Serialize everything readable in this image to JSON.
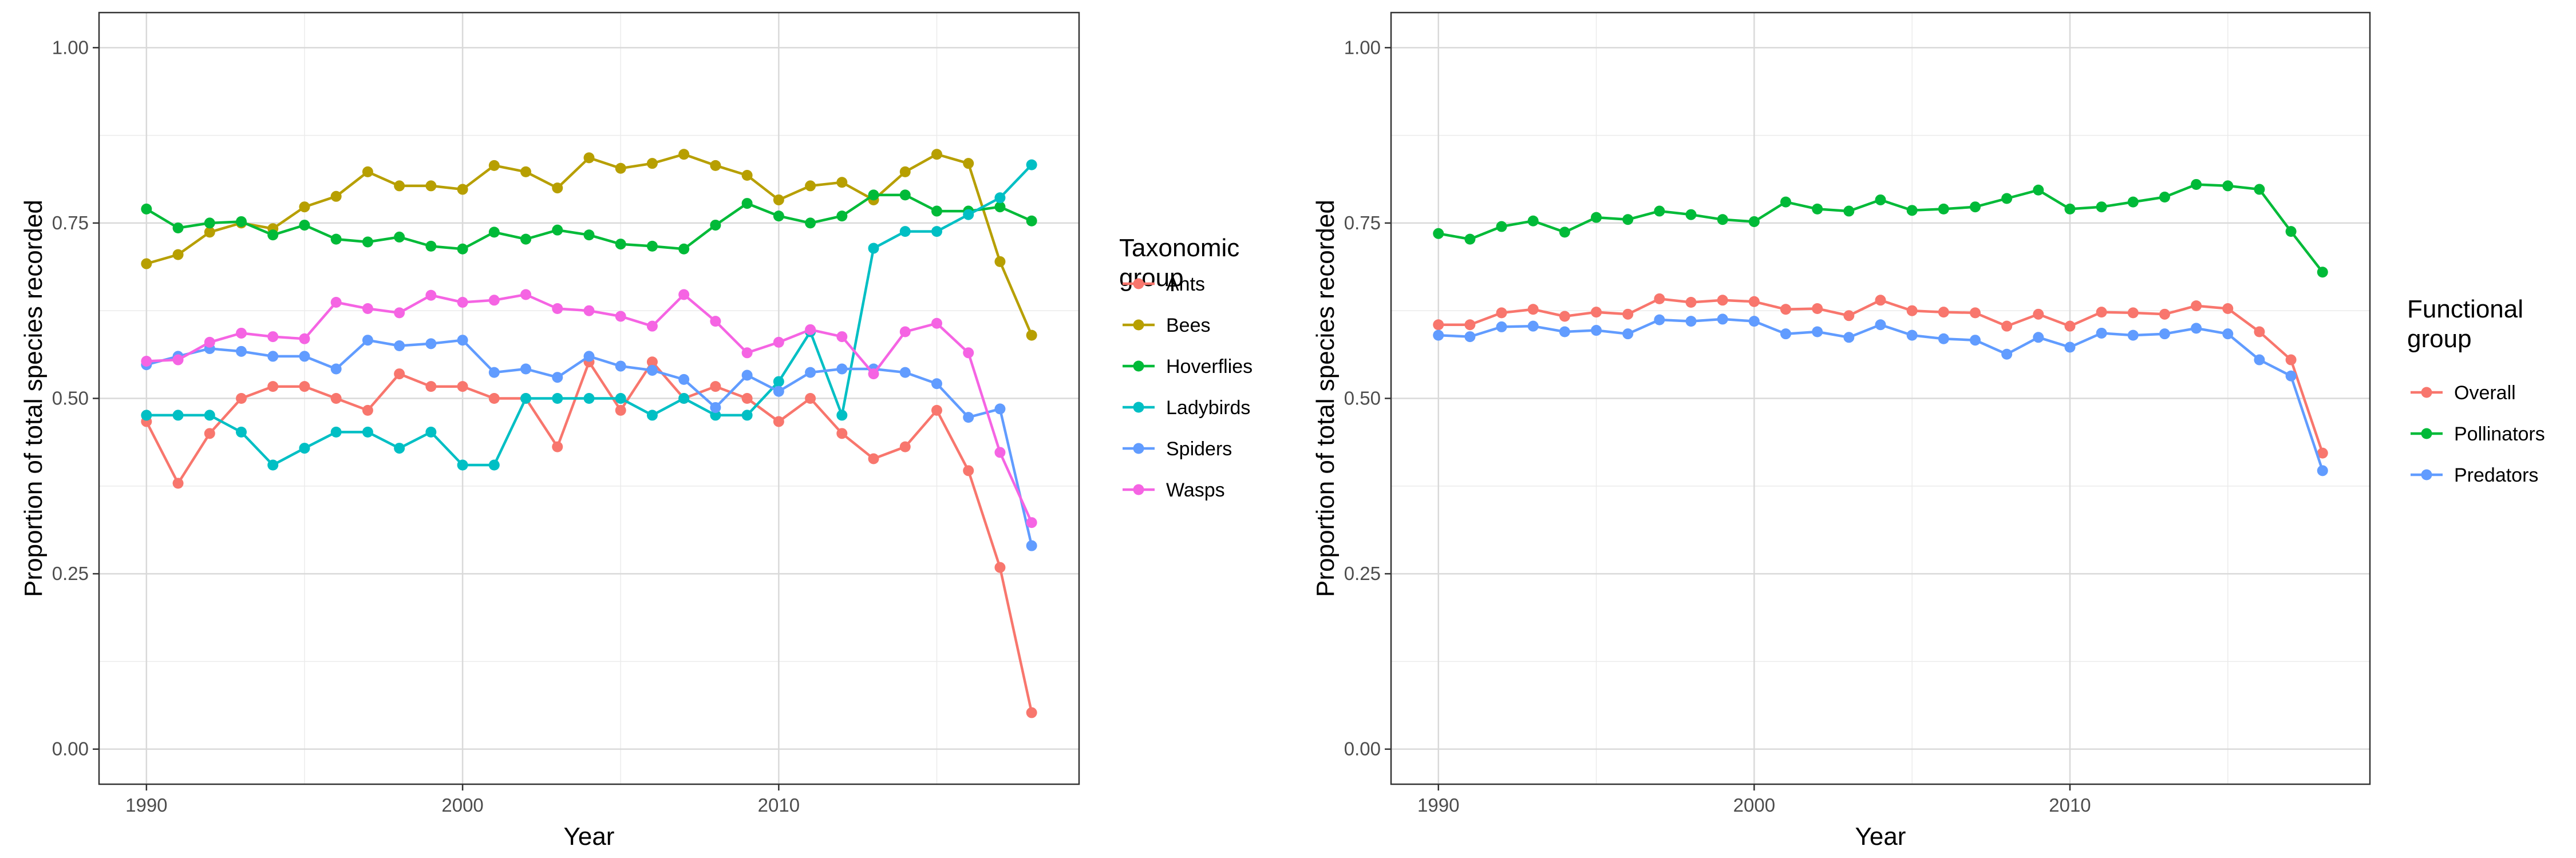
{
  "chart_data": [
    {
      "type": "line",
      "title": "",
      "xlabel": "Year",
      "ylabel": "Proportion of total species recorded",
      "xlim": [
        1988.5,
        2019.5
      ],
      "ylim": [
        -0.05,
        1.05
      ],
      "x_ticks": [
        1990,
        2000,
        2010
      ],
      "y_ticks": [
        0.0,
        0.25,
        0.5,
        0.75,
        1.0
      ],
      "x_tick_labels": [
        "1990",
        "2000",
        "2010"
      ],
      "y_tick_labels": [
        "0.00",
        "0.25",
        "0.50",
        "0.75",
        "1.00"
      ],
      "grid": true,
      "legend_position": "right",
      "legend_title": [
        "Taxonomic",
        "group"
      ],
      "x": [
        1990,
        1991,
        1992,
        1993,
        1994,
        1995,
        1996,
        1997,
        1998,
        1999,
        2000,
        2001,
        2002,
        2003,
        2004,
        2005,
        2006,
        2007,
        2008,
        2009,
        2010,
        2011,
        2012,
        2013,
        2014,
        2015,
        2016,
        2017,
        2018
      ],
      "series": [
        {
          "name": "Ants",
          "color": "#F8766D",
          "values": [
            0.467,
            0.379,
            0.45,
            0.5,
            0.517,
            0.517,
            0.5,
            0.483,
            0.535,
            0.517,
            0.517,
            0.5,
            0.5,
            0.431,
            0.552,
            0.483,
            0.552,
            0.5,
            0.517,
            0.5,
            0.467,
            0.5,
            0.45,
            0.414,
            0.431,
            0.483,
            0.397,
            0.259,
            0.052
          ]
        },
        {
          "name": "Bees",
          "color": "#B79F00",
          "values": [
            0.692,
            0.705,
            0.737,
            0.75,
            0.742,
            0.773,
            0.788,
            0.823,
            0.803,
            0.803,
            0.798,
            0.832,
            0.823,
            0.8,
            0.843,
            0.828,
            0.835,
            0.848,
            0.832,
            0.818,
            0.783,
            0.803,
            0.808,
            0.783,
            0.823,
            0.848,
            0.835,
            0.695,
            0.59
          ]
        },
        {
          "name": "Hoverflies",
          "color": "#00BA38",
          "values": [
            0.77,
            0.743,
            0.75,
            0.752,
            0.733,
            0.747,
            0.727,
            0.723,
            0.73,
            0.717,
            0.713,
            0.737,
            0.727,
            0.74,
            0.733,
            0.72,
            0.717,
            0.713,
            0.747,
            0.778,
            0.76,
            0.75,
            0.76,
            0.79,
            0.79,
            0.767,
            0.767,
            0.773,
            0.753
          ]
        },
        {
          "name": "Ladybirds",
          "color": "#00BFC4",
          "values": [
            0.476,
            0.476,
            0.476,
            0.452,
            0.405,
            0.429,
            0.452,
            0.452,
            0.429,
            0.452,
            0.405,
            0.405,
            0.5,
            0.5,
            0.5,
            0.5,
            0.476,
            0.5,
            0.476,
            0.476,
            0.524,
            0.595,
            0.476,
            0.714,
            0.738,
            0.738,
            0.762,
            0.786,
            0.833
          ]
        },
        {
          "name": "Spiders",
          "color": "#619CFF",
          "values": [
            0.548,
            0.56,
            0.571,
            0.567,
            0.56,
            0.56,
            0.542,
            0.583,
            0.575,
            0.578,
            0.583,
            0.537,
            0.542,
            0.53,
            0.56,
            0.546,
            0.54,
            0.527,
            0.487,
            0.533,
            0.51,
            0.537,
            0.542,
            0.542,
            0.537,
            0.521,
            0.473,
            0.485,
            0.29
          ]
        },
        {
          "name": "Wasps",
          "color": "#F564E3",
          "values": [
            0.553,
            0.555,
            0.58,
            0.593,
            0.588,
            0.585,
            0.637,
            0.628,
            0.622,
            0.647,
            0.637,
            0.64,
            0.648,
            0.628,
            0.625,
            0.617,
            0.603,
            0.648,
            0.61,
            0.565,
            0.58,
            0.598,
            0.588,
            0.535,
            0.595,
            0.607,
            0.565,
            0.423,
            0.323
          ]
        }
      ]
    },
    {
      "type": "line",
      "title": "",
      "xlabel": "Year",
      "ylabel": "Proportion of total species recorded",
      "xlim": [
        1988.5,
        2019.5
      ],
      "ylim": [
        -0.05,
        1.05
      ],
      "x_ticks": [
        1990,
        2000,
        2010
      ],
      "y_ticks": [
        0.0,
        0.25,
        0.5,
        0.75,
        1.0
      ],
      "x_tick_labels": [
        "1990",
        "2000",
        "2010"
      ],
      "y_tick_labels": [
        "0.00",
        "0.25",
        "0.50",
        "0.75",
        "1.00"
      ],
      "grid": true,
      "legend_position": "right",
      "legend_title": [
        "Functional",
        "group"
      ],
      "x": [
        1990,
        1991,
        1992,
        1993,
        1994,
        1995,
        1996,
        1997,
        1998,
        1999,
        2000,
        2001,
        2002,
        2003,
        2004,
        2005,
        2006,
        2007,
        2008,
        2009,
        2010,
        2011,
        2012,
        2013,
        2014,
        2015,
        2016,
        2017,
        2018
      ],
      "series": [
        {
          "name": "Overall",
          "color": "#F8766D",
          "values": [
            0.605,
            0.605,
            0.622,
            0.627,
            0.617,
            0.623,
            0.62,
            0.642,
            0.637,
            0.64,
            0.638,
            0.627,
            0.628,
            0.618,
            0.64,
            0.625,
            0.623,
            0.622,
            0.603,
            0.62,
            0.603,
            0.623,
            0.622,
            0.62,
            0.632,
            0.628,
            0.595,
            0.555,
            0.422
          ]
        },
        {
          "name": "Pollinators",
          "color": "#00BA38",
          "values": [
            0.735,
            0.727,
            0.745,
            0.753,
            0.737,
            0.758,
            0.755,
            0.767,
            0.762,
            0.755,
            0.752,
            0.78,
            0.77,
            0.767,
            0.783,
            0.768,
            0.77,
            0.773,
            0.785,
            0.797,
            0.77,
            0.773,
            0.78,
            0.787,
            0.805,
            0.803,
            0.798,
            0.738,
            0.68
          ]
        },
        {
          "name": "Predators",
          "color": "#619CFF",
          "values": [
            0.59,
            0.588,
            0.602,
            0.603,
            0.595,
            0.597,
            0.592,
            0.612,
            0.61,
            0.613,
            0.61,
            0.592,
            0.595,
            0.587,
            0.605,
            0.59,
            0.585,
            0.583,
            0.563,
            0.587,
            0.573,
            0.593,
            0.59,
            0.592,
            0.6,
            0.592,
            0.555,
            0.532,
            0.397
          ]
        }
      ]
    }
  ]
}
